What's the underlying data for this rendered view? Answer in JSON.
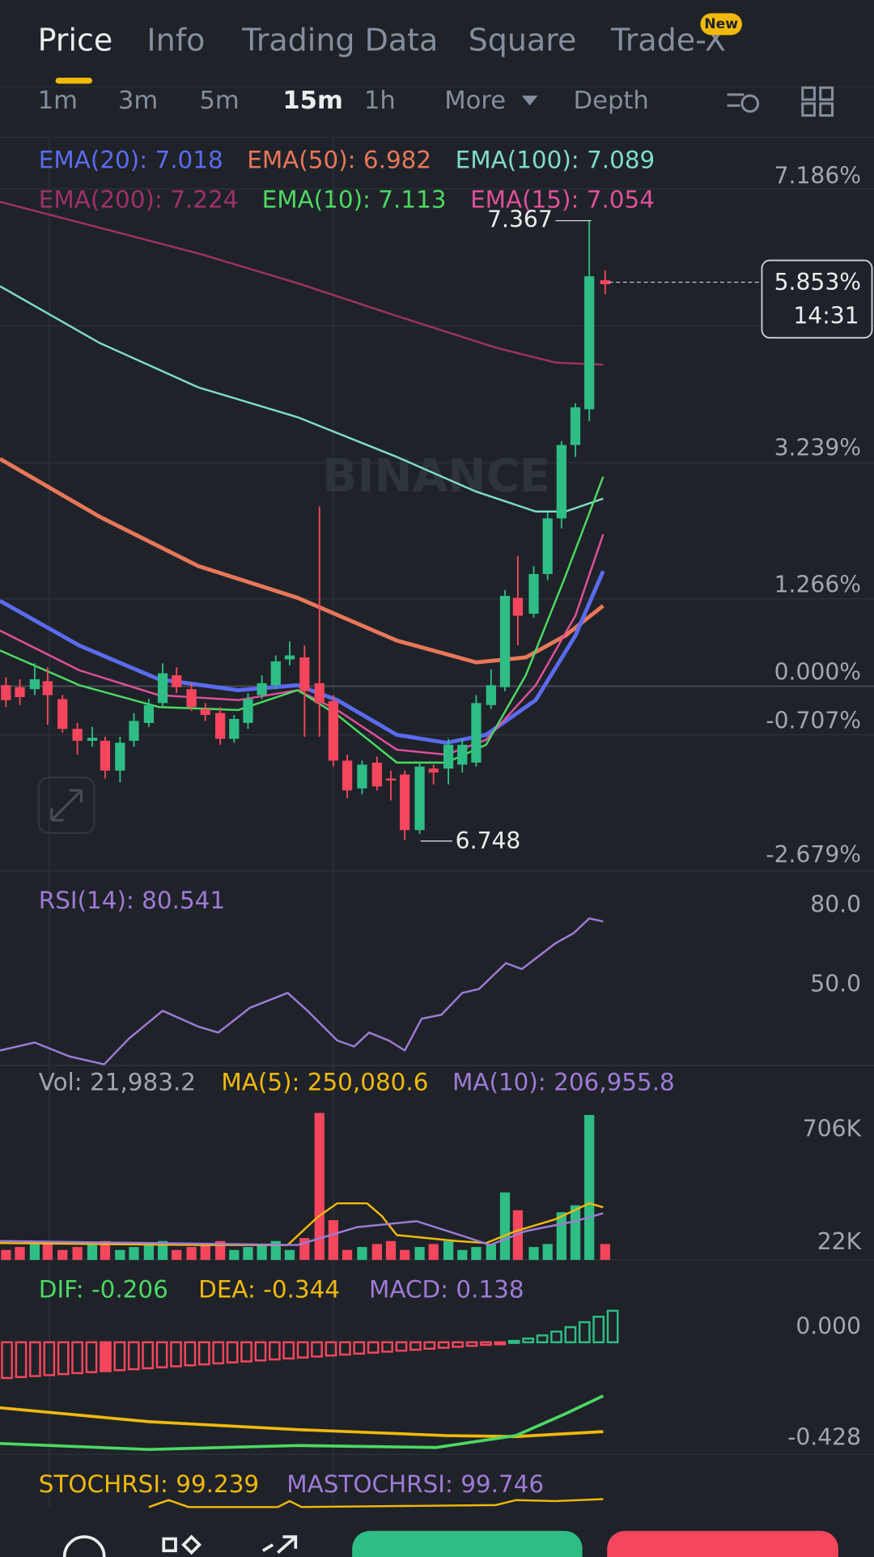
{
  "tabs": [
    "Price",
    "Info",
    "Trading Data",
    "Square",
    "Trade-X"
  ],
  "tab_badge": "New",
  "intervals": [
    "1m",
    "3m",
    "5m",
    "15m",
    "1h",
    "More",
    "Depth"
  ],
  "main_chart": {
    "ema_labels": [
      "EMA(20): 7.018",
      "EMA(50): 6.982",
      "EMA(100): 7.089",
      "EMA(200): 7.224",
      "EMA(10): 7.113",
      "EMA(15): 7.054"
    ],
    "y_axis": [
      "7.186%",
      "3.239%",
      "1.266%",
      "0.000%",
      "-0.707%",
      "-2.679%"
    ],
    "current": "5.853%",
    "countdown": "14:31",
    "high": "7.367",
    "low": "6.748",
    "watermark": "BINANCE"
  },
  "rsi": {
    "label": "RSI(14): 80.541",
    "y_axis": [
      "80.0",
      "50.0"
    ]
  },
  "volume": {
    "labels": [
      "Vol: 21,983.2",
      "MA(5): 250,080.6",
      "MA(10): 206,955.8"
    ],
    "y_axis": [
      "706K",
      "22K"
    ]
  },
  "macd": {
    "labels": [
      "DIF: -0.206",
      "DEA: -0.344",
      "MACD: 0.138"
    ],
    "y_axis": [
      "0.000",
      "-0.428"
    ]
  },
  "stochrsi": {
    "labels": [
      "STOCHRSI: 99.239",
      "MASTOCHRSI: 99.746"
    ]
  }
}
